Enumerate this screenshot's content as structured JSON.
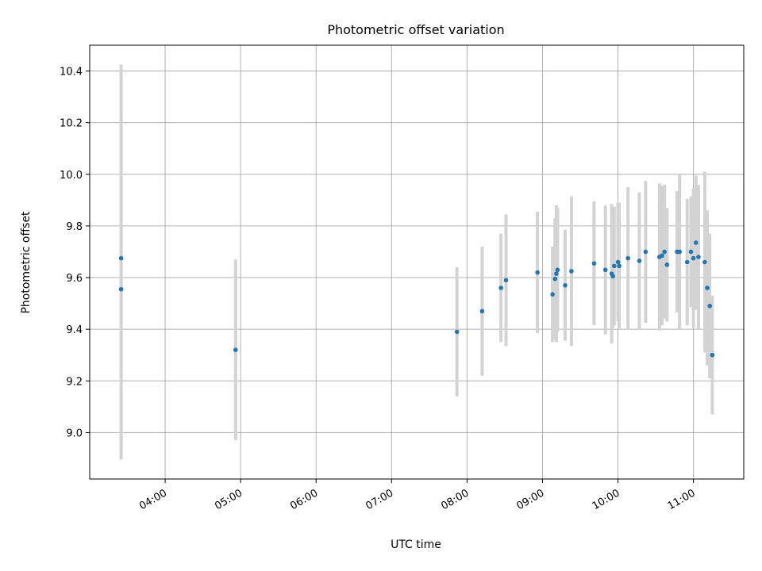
{
  "chart_data": {
    "type": "scatter",
    "title": "Photometric offset variation",
    "xlabel": "UTC time",
    "ylabel": "Photometric offset",
    "x_ticks": [
      "04:00",
      "05:00",
      "06:00",
      "07:00",
      "08:00",
      "09:00",
      "10:00",
      "11:00"
    ],
    "y_ticks": [
      "9.0",
      "9.2",
      "9.4",
      "9.6",
      "9.8",
      "10.0",
      "10.2",
      "10.4"
    ],
    "xlim": [
      "03:00",
      "11:40"
    ],
    "ylim": [
      8.82,
      10.5
    ],
    "grid": true,
    "point_color": "#1f77b4",
    "errorbar_color": "#d3d3d3",
    "points": [
      {
        "x": "03:25",
        "y": 9.675,
        "err": 0.75
      },
      {
        "x": "03:25",
        "y": 9.555,
        "err": 0.66
      },
      {
        "x": "04:56",
        "y": 9.32,
        "err": 0.35
      },
      {
        "x": "07:52",
        "y": 9.39,
        "err": 0.25
      },
      {
        "x": "08:12",
        "y": 9.47,
        "err": 0.25
      },
      {
        "x": "08:27",
        "y": 9.56,
        "err": 0.21
      },
      {
        "x": "08:31",
        "y": 9.59,
        "err": 0.255
      },
      {
        "x": "08:56",
        "y": 9.62,
        "err": 0.235
      },
      {
        "x": "09:08",
        "y": 9.535,
        "err": 0.185
      },
      {
        "x": "09:10",
        "y": 9.595,
        "err": 0.235
      },
      {
        "x": "09:11",
        "y": 9.615,
        "err": 0.265
      },
      {
        "x": "09:12",
        "y": 9.63,
        "err": 0.24
      },
      {
        "x": "09:18",
        "y": 9.57,
        "err": 0.215
      },
      {
        "x": "09:23",
        "y": 9.625,
        "err": 0.29
      },
      {
        "x": "09:41",
        "y": 9.655,
        "err": 0.24
      },
      {
        "x": "09:50",
        "y": 9.63,
        "err": 0.25
      },
      {
        "x": "09:55",
        "y": 9.615,
        "err": 0.27
      },
      {
        "x": "09:56",
        "y": 9.605,
        "err": 0.2
      },
      {
        "x": "09:57",
        "y": 9.645,
        "err": 0.23
      },
      {
        "x": "10:00",
        "y": 9.66,
        "err": 0.23
      },
      {
        "x": "10:01",
        "y": 9.645,
        "err": 0.245
      },
      {
        "x": "10:08",
        "y": 9.675,
        "err": 0.275
      },
      {
        "x": "10:17",
        "y": 9.665,
        "err": 0.265
      },
      {
        "x": "10:22",
        "y": 9.7,
        "err": 0.275
      },
      {
        "x": "10:33",
        "y": 9.68,
        "err": 0.285
      },
      {
        "x": "10:35",
        "y": 9.685,
        "err": 0.27
      },
      {
        "x": "10:37",
        "y": 9.7,
        "err": 0.26
      },
      {
        "x": "10:39",
        "y": 9.65,
        "err": 0.22
      },
      {
        "x": "10:47",
        "y": 9.7,
        "err": 0.235
      },
      {
        "x": "10:49",
        "y": 9.7,
        "err": 0.3
      },
      {
        "x": "10:55",
        "y": 9.66,
        "err": 0.245
      },
      {
        "x": "10:58",
        "y": 9.7,
        "err": 0.215
      },
      {
        "x": "11:00",
        "y": 9.675,
        "err": 0.27
      },
      {
        "x": "11:02",
        "y": 9.735,
        "err": 0.26
      },
      {
        "x": "11:04",
        "y": 9.68,
        "err": 0.28
      },
      {
        "x": "11:09",
        "y": 9.66,
        "err": 0.35
      },
      {
        "x": "11:11",
        "y": 9.56,
        "err": 0.3
      },
      {
        "x": "11:13",
        "y": 9.49,
        "err": 0.28
      },
      {
        "x": "11:15",
        "y": 9.3,
        "err": 0.23
      }
    ]
  }
}
